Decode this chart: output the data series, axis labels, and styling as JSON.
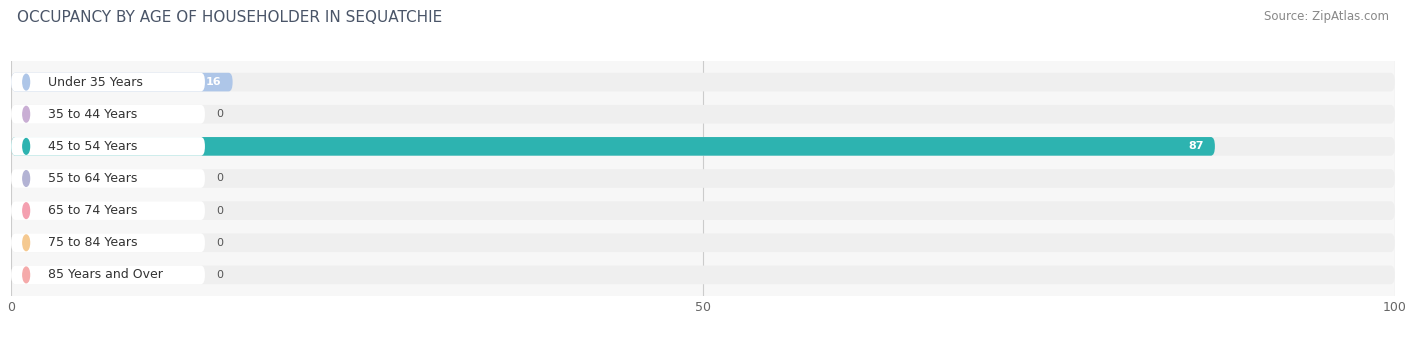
{
  "title": "OCCUPANCY BY AGE OF HOUSEHOLDER IN SEQUATCHIE",
  "source": "Source: ZipAtlas.com",
  "categories": [
    "Under 35 Years",
    "35 to 44 Years",
    "45 to 54 Years",
    "55 to 64 Years",
    "65 to 74 Years",
    "75 to 84 Years",
    "85 Years and Over"
  ],
  "values": [
    16,
    0,
    87,
    0,
    0,
    0,
    0
  ],
  "bar_colors": [
    "#aec6e8",
    "#c9aed4",
    "#2db3b0",
    "#b3b3d4",
    "#f4a0b0",
    "#f5c990",
    "#f5aaaa"
  ],
  "value_label_color": "#ffffff",
  "background_color": "#f5f5f5",
  "bar_bg_color": "#e8e8e8",
  "row_bg_color": "#efefef",
  "label_pill_color": "#ffffff",
  "xlim": [
    0,
    100
  ],
  "xticks": [
    0,
    50,
    100
  ],
  "title_fontsize": 11,
  "source_fontsize": 8.5,
  "category_fontsize": 9,
  "value_fontsize": 8,
  "tick_fontsize": 9,
  "bar_height": 0.58,
  "figsize": [
    14.06,
    3.4
  ],
  "dpi": 100
}
